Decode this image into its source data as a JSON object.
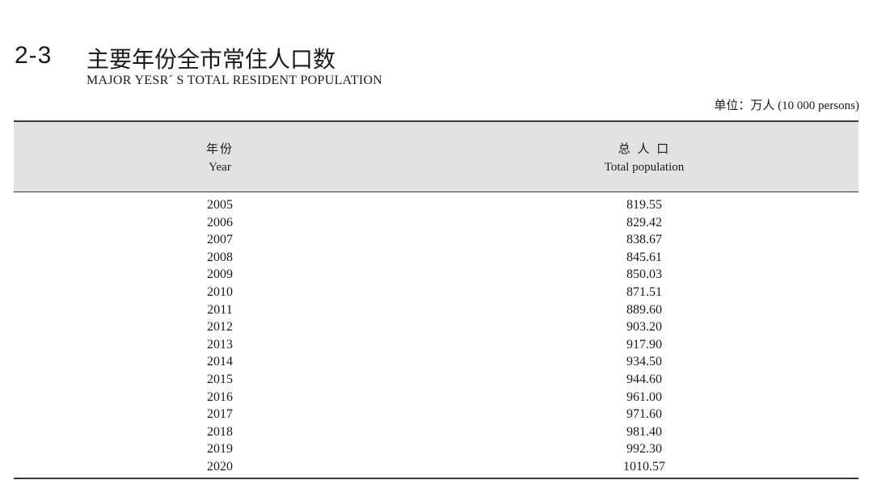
{
  "table_number": "2-3",
  "title_zh": "主要年份全市常住人口数",
  "title_en": "MAJOR YESR´ S TOTAL RESIDENT POPULATION",
  "unit": {
    "zh": "单位：万人",
    "en": "(10 000 persons)"
  },
  "columns": {
    "year": {
      "zh": "年份",
      "en": "Year"
    },
    "population": {
      "zh": "总 人 口",
      "en": "Total population"
    }
  },
  "rows": [
    {
      "year": "2005",
      "value": "819.55"
    },
    {
      "year": "2006",
      "value": "829.42"
    },
    {
      "year": "2007",
      "value": "838.67"
    },
    {
      "year": "2008",
      "value": "845.61"
    },
    {
      "year": "2009",
      "value": "850.03"
    },
    {
      "year": "2010",
      "value": "871.51"
    },
    {
      "year": "2011",
      "value": "889.60"
    },
    {
      "year": "2012",
      "value": "903.20"
    },
    {
      "year": "2013",
      "value": "917.90"
    },
    {
      "year": "2014",
      "value": "934.50"
    },
    {
      "year": "2015",
      "value": "944.60"
    },
    {
      "year": "2016",
      "value": "961.00"
    },
    {
      "year": "2017",
      "value": "971.60"
    },
    {
      "year": "2018",
      "value": "981.40"
    },
    {
      "year": "2019",
      "value": "992.30"
    },
    {
      "year": "2020",
      "value": "1010.57"
    }
  ]
}
